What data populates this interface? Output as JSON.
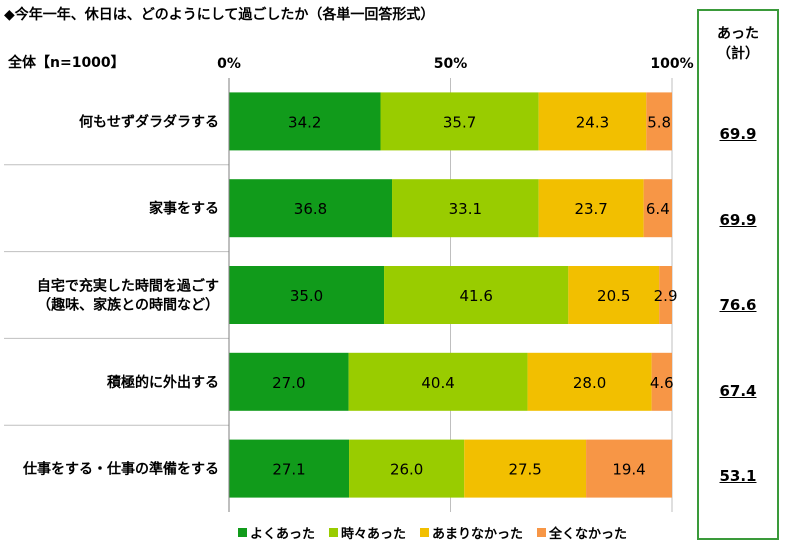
{
  "title": "◆今年一年、休日は、どのようにして過ごしたか（各単一回答形式）",
  "sample_label": "全体【n=1000】",
  "summary": {
    "header_line1": "あった",
    "header_line2": "（計）",
    "values": [
      "69.9",
      "69.9",
      "76.6",
      "67.4",
      "53.1"
    ]
  },
  "colors": {
    "often": "#119b1b",
    "sometimes": "#99cc00",
    "rarely": "#f2bf00",
    "never": "#f79646",
    "gridline": "#bfbfbf",
    "frame": "#3a9a3a"
  },
  "chart_data": {
    "type": "bar",
    "orientation": "horizontal",
    "stacked": true,
    "categories": [
      [
        "何もせずダラダラする"
      ],
      [
        "家事をする"
      ],
      [
        "自宅で充実した時間を過ごす",
        "（趣味、家族との時間など）"
      ],
      [
        "積極的に外出する"
      ],
      [
        "仕事をする・仕事の準備をする"
      ]
    ],
    "series": [
      {
        "name": "よくあった",
        "values": [
          34.2,
          36.8,
          35.0,
          27.0,
          27.1
        ]
      },
      {
        "name": "時々あった",
        "values": [
          35.7,
          33.1,
          41.6,
          40.4,
          26.0
        ]
      },
      {
        "name": "あまりなかった",
        "values": [
          24.3,
          23.7,
          20.5,
          28.0,
          27.5
        ]
      },
      {
        "name": "全くなかった",
        "values": [
          5.8,
          6.4,
          2.9,
          4.6,
          19.4
        ]
      }
    ],
    "x_ticks": [
      "0%",
      "50%",
      "100%"
    ],
    "xlim": [
      0,
      100
    ],
    "legend_position": "bottom"
  }
}
